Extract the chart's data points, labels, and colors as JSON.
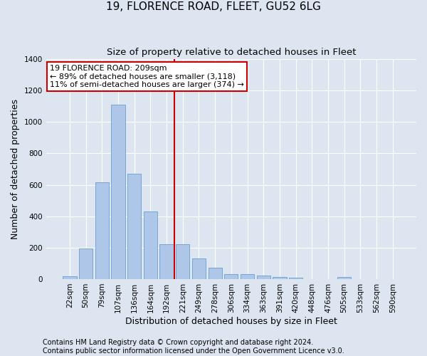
{
  "title": "19, FLORENCE ROAD, FLEET, GU52 6LG",
  "subtitle": "Size of property relative to detached houses in Fleet",
  "xlabel": "Distribution of detached houses by size in Fleet",
  "ylabel": "Number of detached properties",
  "footer_line1": "Contains HM Land Registry data © Crown copyright and database right 2024.",
  "footer_line2": "Contains public sector information licensed under the Open Government Licence v3.0.",
  "categories": [
    "22sqm",
    "50sqm",
    "79sqm",
    "107sqm",
    "136sqm",
    "164sqm",
    "192sqm",
    "221sqm",
    "249sqm",
    "278sqm",
    "306sqm",
    "334sqm",
    "363sqm",
    "391sqm",
    "420sqm",
    "448sqm",
    "476sqm",
    "505sqm",
    "533sqm",
    "562sqm",
    "590sqm"
  ],
  "values": [
    17,
    195,
    615,
    1110,
    670,
    430,
    220,
    220,
    130,
    72,
    32,
    30,
    22,
    15,
    10,
    0,
    0,
    12,
    0,
    0,
    0
  ],
  "bar_color": "#aec6e8",
  "bar_edge_color": "#6a9fd0",
  "annotation_text_line1": "19 FLORENCE ROAD: 209sqm",
  "annotation_text_line2": "← 89% of detached houses are smaller (3,118)",
  "annotation_text_line3": "11% of semi-detached houses are larger (374) →",
  "vline_position": 6.5,
  "vline_color": "#cc0000",
  "annotation_box_color": "#ffffff",
  "annotation_box_edge_color": "#cc0000",
  "ylim": [
    0,
    1400
  ],
  "yticks": [
    0,
    200,
    400,
    600,
    800,
    1000,
    1200,
    1400
  ],
  "background_color": "#dde5f0",
  "plot_background": "#dde5f0",
  "grid_color": "#ffffff",
  "title_fontsize": 11,
  "subtitle_fontsize": 9.5,
  "axis_label_fontsize": 9,
  "tick_fontsize": 7.5,
  "annotation_fontsize": 8,
  "footer_fontsize": 7
}
